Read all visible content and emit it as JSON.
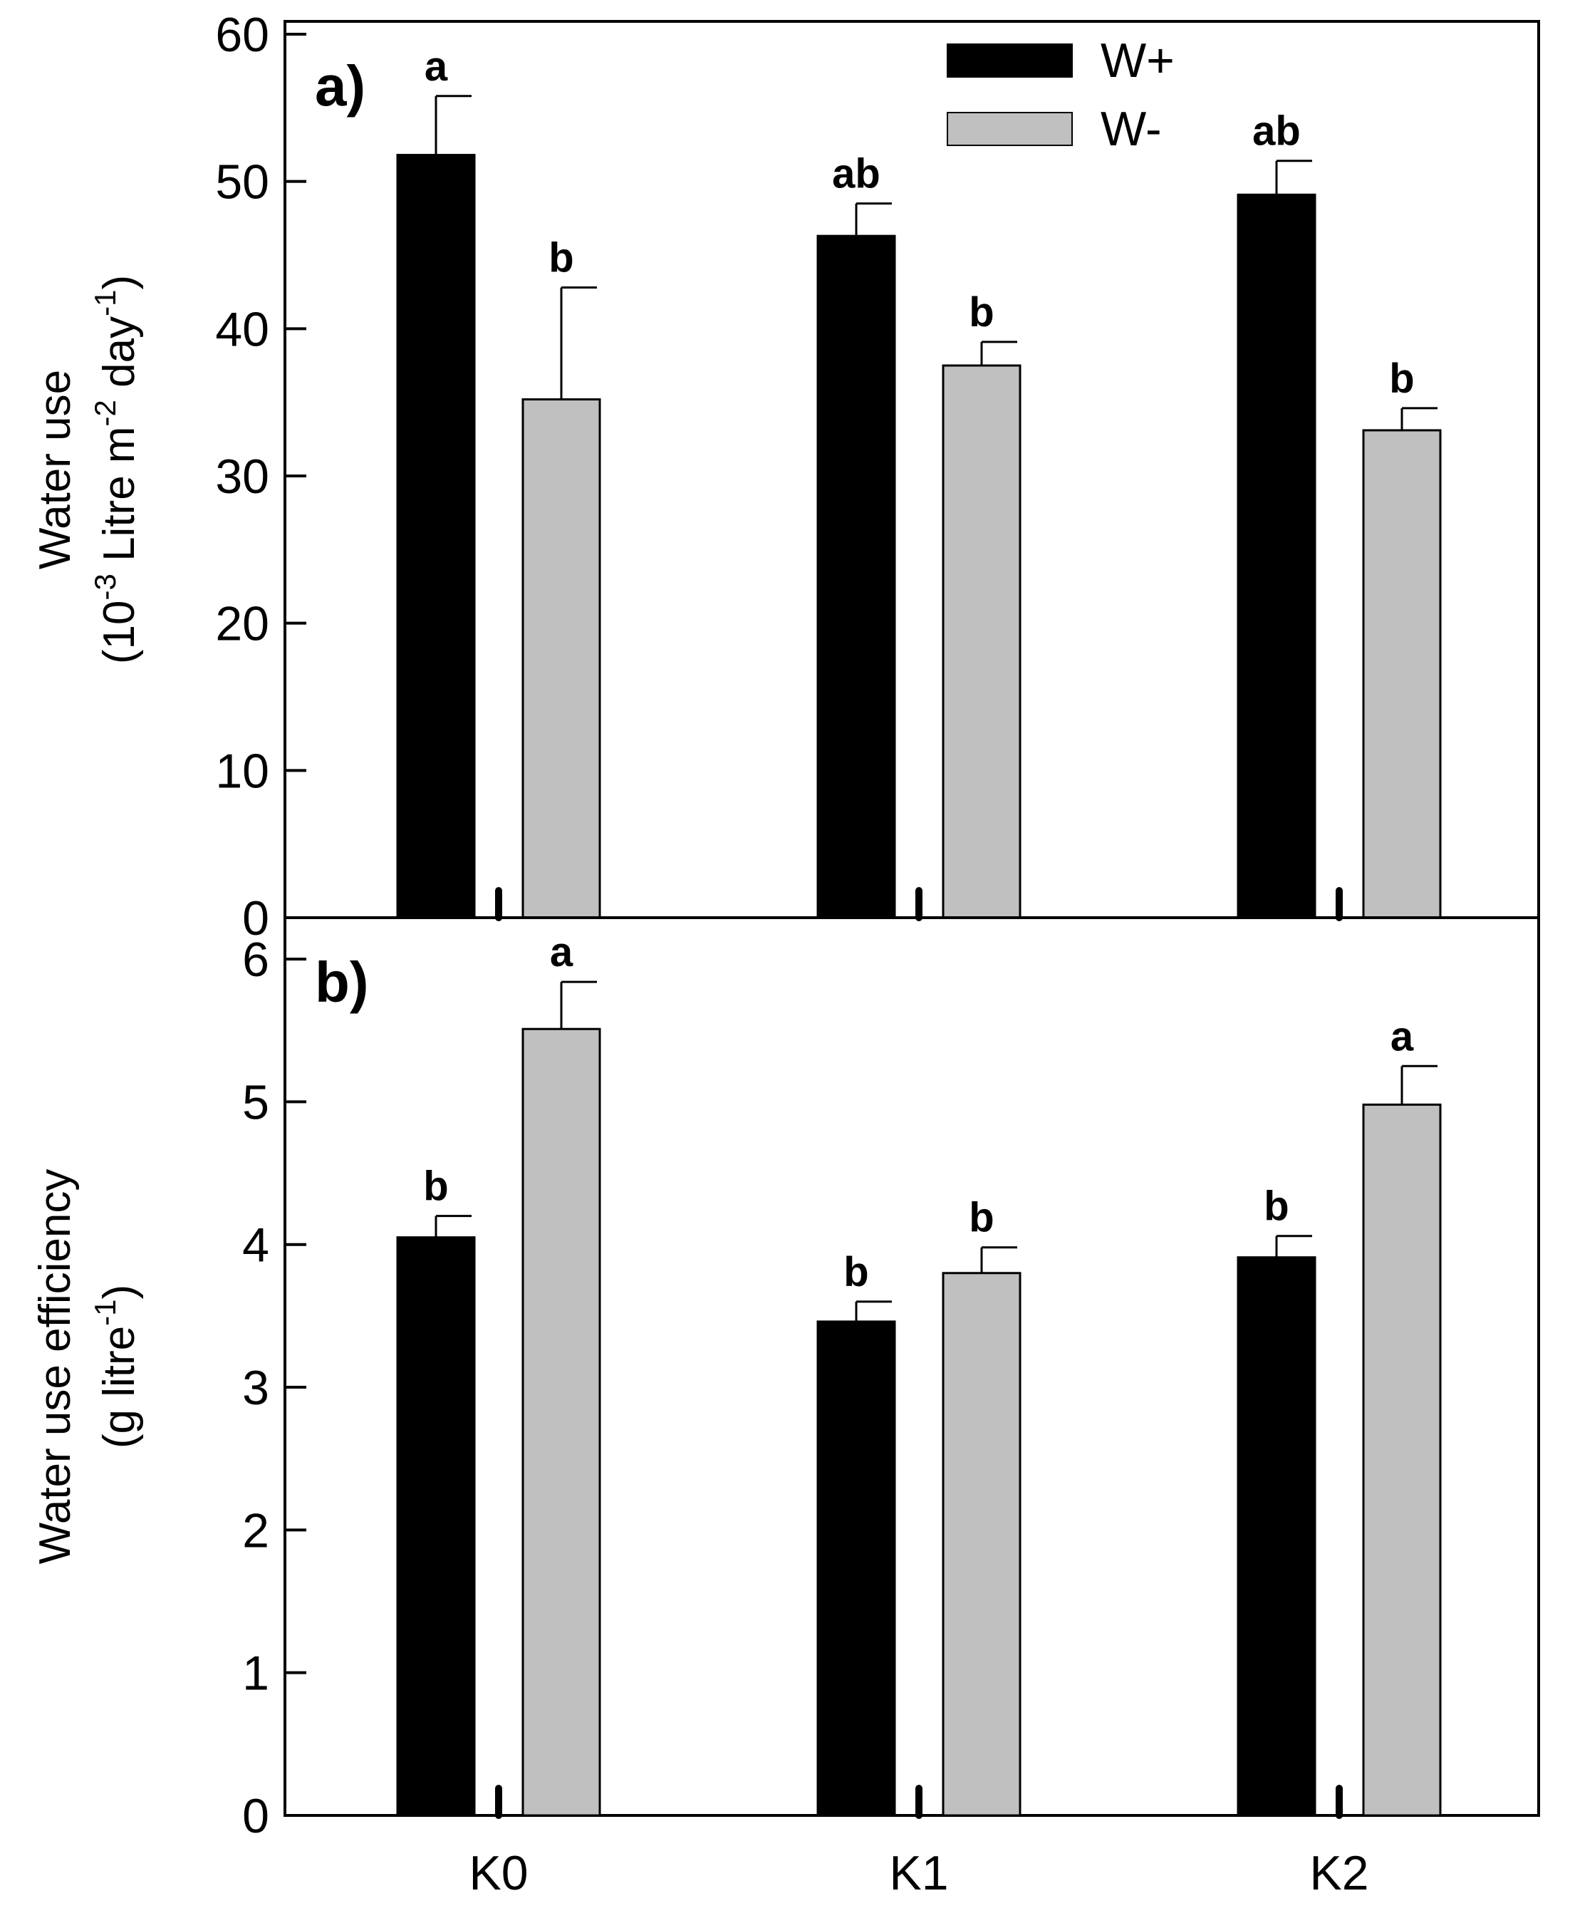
{
  "chart_data": [
    {
      "type": "bar",
      "panel_label": "a)",
      "categories": [
        "K0",
        "K1",
        "K2"
      ],
      "series": [
        {
          "name": "W+",
          "color": "#000000",
          "values": [
            51.8,
            46.3,
            49.1
          ],
          "errors": [
            4.0,
            2.2,
            2.3
          ],
          "letters": [
            "a",
            "ab",
            "ab"
          ]
        },
        {
          "name": "W-",
          "color": "#c0c0c0",
          "values": [
            35.2,
            37.5,
            33.1
          ],
          "errors": [
            7.6,
            1.6,
            1.5
          ],
          "letters": [
            "b",
            "b",
            "b"
          ]
        }
      ],
      "ylabel_line1": "Water use",
      "ylabel_line2_pre": "(10",
      "ylabel_sup1": "-3",
      "ylabel_line2_mid": " Litre m",
      "ylabel_sup2": "-2",
      "ylabel_line2_mid2": " day",
      "ylabel_sup3": "-1",
      "ylabel_line2_post": ")",
      "ylim": [
        0,
        60
      ],
      "yticks": [
        0,
        10,
        20,
        30,
        40,
        50,
        60
      ]
    },
    {
      "type": "bar",
      "panel_label": "b)",
      "categories": [
        "K0",
        "K1",
        "K2"
      ],
      "series": [
        {
          "name": "W+",
          "color": "#000000",
          "values": [
            4.05,
            3.46,
            3.91
          ],
          "errors": [
            0.15,
            0.14,
            0.15
          ],
          "letters": [
            "b",
            "b",
            "b"
          ]
        },
        {
          "name": "W-",
          "color": "#c0c0c0",
          "values": [
            5.51,
            3.8,
            4.98
          ],
          "errors": [
            0.33,
            0.18,
            0.27
          ],
          "letters": [
            "a",
            "b",
            "a"
          ]
        }
      ],
      "ylabel_line1": "Water use efficiency",
      "ylabel_line2_pre": "(g litre",
      "ylabel_sup1": "-1",
      "ylabel_line2_post": ")",
      "ylim": [
        0,
        6.2
      ],
      "yticks": [
        0,
        1,
        2,
        3,
        4,
        5,
        6
      ]
    }
  ],
  "legend": [
    {
      "label": "W+",
      "color": "#000000"
    },
    {
      "label": "W-",
      "color": "#c0c0c0"
    }
  ]
}
